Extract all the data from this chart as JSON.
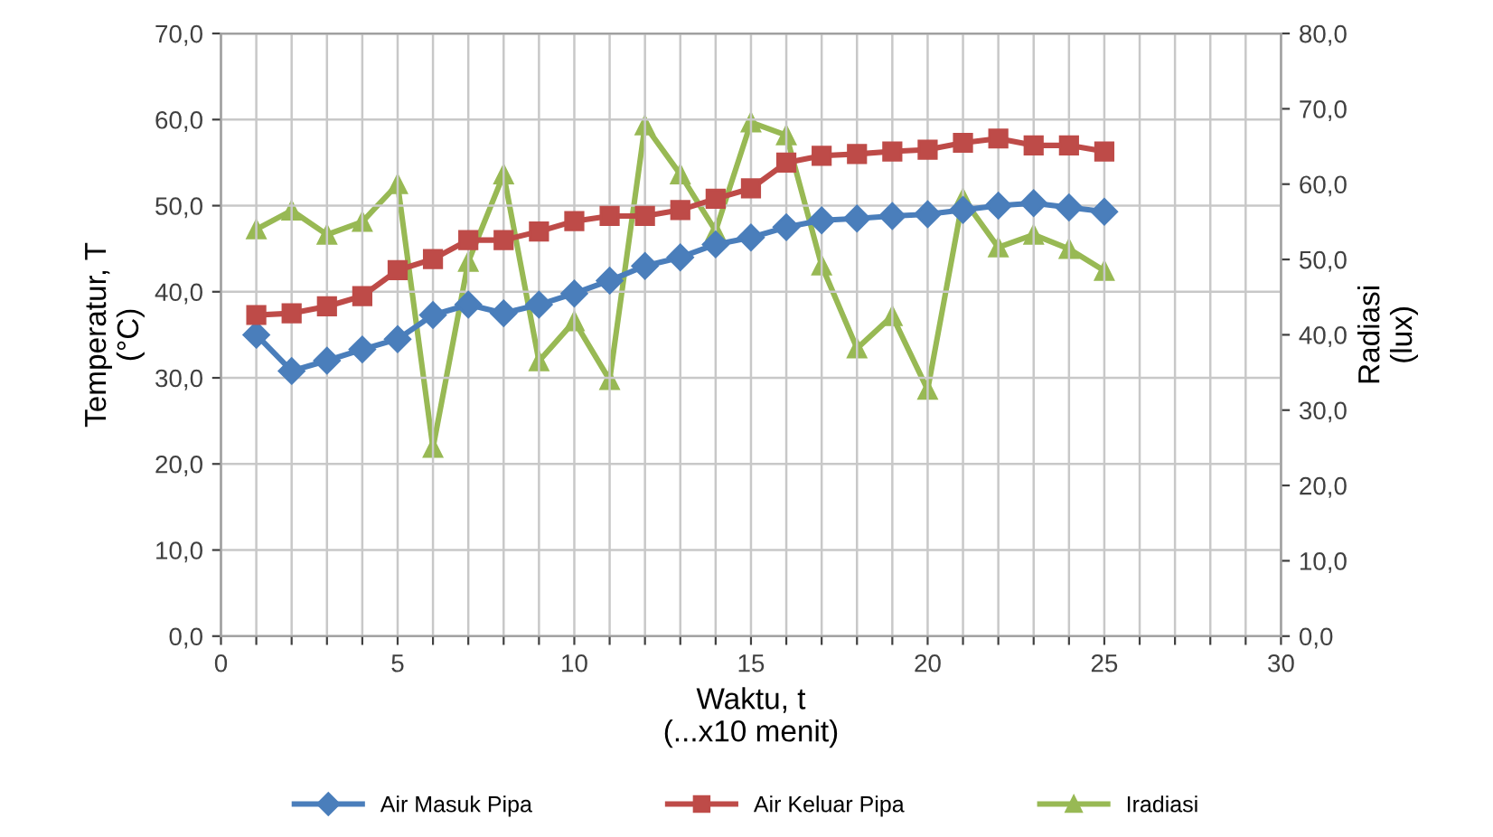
{
  "chart_data": {
    "type": "line",
    "xlabel": "Waktu, t\n(...x10 menit)",
    "ylabel": "Temperatur, T\n(°C)",
    "y2label": "Radiasi\n(lux)",
    "x": [
      1,
      2,
      3,
      4,
      5,
      6,
      7,
      8,
      9,
      10,
      11,
      12,
      13,
      14,
      15,
      16,
      17,
      18,
      19,
      20,
      21,
      22,
      23,
      24,
      25
    ],
    "series": [
      {
        "name": "Air Masuk Pipa",
        "color": "#4a7ebb",
        "marker": "diamond",
        "values": [
          35,
          30.8,
          32,
          33.3,
          34.5,
          37.3,
          38.5,
          37.5,
          38.5,
          39.8,
          41.3,
          43,
          44,
          45.5,
          46.3,
          47.5,
          48.3,
          48.5,
          48.8,
          49,
          49.5,
          50,
          50.3,
          49.8,
          49.3
        ]
      },
      {
        "name": "Air Keluar Pipa",
        "color": "#be4b48",
        "marker": "square",
        "values": [
          37.3,
          37.5,
          38.3,
          39.5,
          42.5,
          43.8,
          46,
          46,
          47,
          48.2,
          48.8,
          48.8,
          49.5,
          50.8,
          52,
          55,
          55.8,
          56,
          56.3,
          56.5,
          57.3,
          57.8,
          57,
          57,
          56.3
        ]
      },
      {
        "name": "Iradiasi",
        "color": "#98b954",
        "marker": "triangle",
        "axis": "y2",
        "values": [
          54,
          56.5,
          53.3,
          55,
          60,
          25,
          49.7,
          61.3,
          36.5,
          41.8,
          34,
          67.8,
          61.3,
          53.8,
          68.2,
          66.5,
          49.2,
          38.2,
          42.5,
          32.7,
          58.1,
          51.6,
          53.3,
          51.4,
          48.5
        ]
      }
    ],
    "xlim": [
      0,
      30
    ],
    "xticks": [
      0,
      {
        "value": 1,
        "label": null
      },
      {
        "value": 2,
        "label": null
      },
      {
        "value": 3,
        "label": null
      },
      {
        "value": 4,
        "label": null
      },
      5,
      {
        "value": 6,
        "label": null
      },
      {
        "value": 7,
        "label": null
      },
      {
        "value": 8,
        "label": null
      },
      {
        "value": 9,
        "label": null
      },
      10,
      {
        "value": 11,
        "label": null
      },
      {
        "value": 12,
        "label": null
      },
      {
        "value": 13,
        "label": null
      },
      {
        "value": 14,
        "label": null
      },
      15,
      {
        "value": 16,
        "label": null
      },
      {
        "value": 17,
        "label": null
      },
      {
        "value": 18,
        "label": null
      },
      {
        "value": 19,
        "label": null
      },
      20,
      {
        "value": 21,
        "label": null
      },
      {
        "value": 22,
        "label": null
      },
      {
        "value": 23,
        "label": null
      },
      {
        "value": 24,
        "label": null
      },
      25,
      {
        "value": 26,
        "label": null
      },
      {
        "value": 27,
        "label": null
      },
      {
        "value": 28,
        "label": null
      },
      {
        "value": 29,
        "label": null
      },
      30
    ],
    "ylim": [
      0,
      70
    ],
    "yticks": [
      {
        "value": 0,
        "label": "0,0"
      },
      {
        "value": 10,
        "label": "10,0"
      },
      {
        "value": 20,
        "label": "20,0"
      },
      {
        "value": 30,
        "label": "30,0"
      },
      {
        "value": 40,
        "label": "40,0"
      },
      {
        "value": 50,
        "label": "50,0"
      },
      {
        "value": 60,
        "label": "60,0"
      },
      {
        "value": 70,
        "label": "70,0"
      }
    ],
    "y2lim": [
      0,
      80
    ],
    "y2ticks": [
      {
        "value": 0,
        "label": "0,0"
      },
      {
        "value": 10,
        "label": "10,0"
      },
      {
        "value": 20,
        "label": "20,0"
      },
      {
        "value": 30,
        "label": "30,0"
      },
      {
        "value": 40,
        "label": "40,0"
      },
      {
        "value": 50,
        "label": "50,0"
      },
      {
        "value": 60,
        "label": "60,0"
      },
      {
        "value": 70,
        "label": "70,0"
      },
      {
        "value": 80,
        "label": "80,0"
      }
    ],
    "grid": true,
    "legend": "bottom",
    "line_style": "solid"
  }
}
